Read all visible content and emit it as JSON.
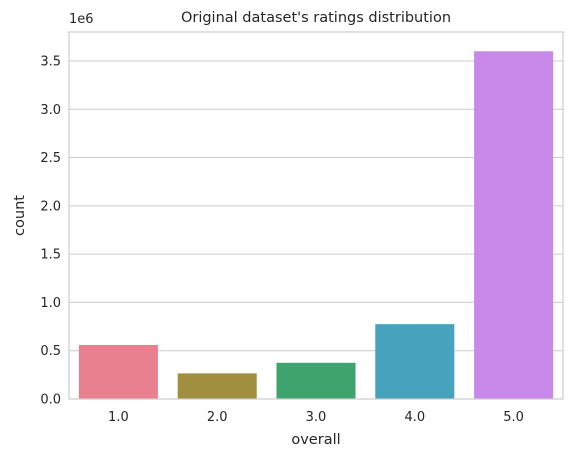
{
  "chart_data": {
    "type": "bar",
    "title": "Original dataset's ratings distribution",
    "xlabel": "overall",
    "ylabel": "count",
    "offset_label": "1e6",
    "categories": [
      "1.0",
      "2.0",
      "3.0",
      "4.0",
      "5.0"
    ],
    "values": [
      560000,
      265000,
      375000,
      775000,
      3600000
    ],
    "colors": [
      "#e8808f",
      "#a08f3e",
      "#3ea36d",
      "#47a3bd",
      "#c888e7"
    ],
    "ylim": [
      0,
      3800000
    ],
    "yticks": [
      0,
      500000,
      1000000,
      1500000,
      2000000,
      2500000,
      3000000,
      3500000
    ],
    "ytick_labels": [
      "0.0",
      "0.5",
      "1.0",
      "1.5",
      "2.0",
      "2.5",
      "3.0",
      "3.5"
    ],
    "grid": "horizontal",
    "legend": "none"
  }
}
